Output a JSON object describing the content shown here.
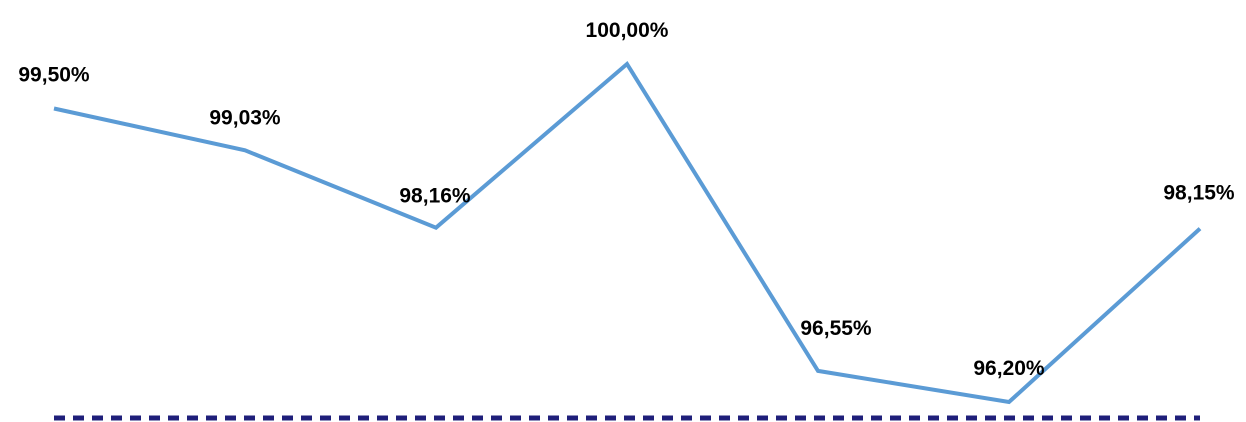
{
  "chart_data": {
    "type": "line",
    "title": "",
    "xlabel": "",
    "ylabel": "",
    "series": [
      {
        "values": [
          99.5,
          99.03,
          98.16,
          100.0,
          96.55,
          96.2,
          98.15
        ],
        "labels": [
          "99,50%",
          "99,03%",
          "98,16%",
          "100,00%",
          "96,55%",
          "96,20%",
          "98,15%"
        ],
        "color": "#5B9BD5"
      }
    ],
    "reference_line": {
      "style": "dashed",
      "color": "#1F1F7A"
    },
    "grid": false,
    "legend": "none"
  }
}
